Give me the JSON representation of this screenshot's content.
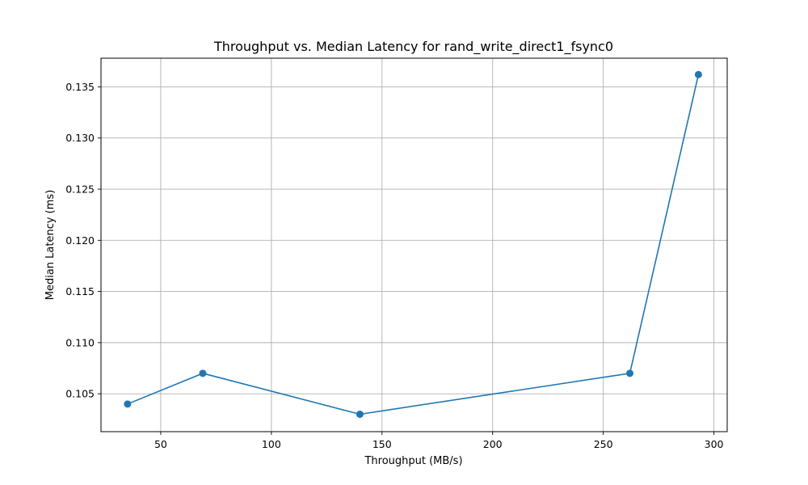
{
  "chart_data": {
    "type": "line",
    "title": "Throughput vs. Median Latency for rand_write_direct1_fsync0",
    "xlabel": "Throughput (MB/s)",
    "ylabel": "Median Latency (ms)",
    "xlim": [
      23,
      306
    ],
    "ylim": [
      0.1013,
      0.1378
    ],
    "xticks": [
      50,
      100,
      150,
      200,
      250,
      300
    ],
    "yticks": [
      0.105,
      0.11,
      0.115,
      0.12,
      0.125,
      0.13,
      0.135
    ],
    "xtick_labels": [
      "50",
      "100",
      "150",
      "200",
      "250",
      "300"
    ],
    "ytick_labels": [
      "0.105",
      "0.110",
      "0.115",
      "0.120",
      "0.125",
      "0.130",
      "0.135"
    ],
    "grid": true,
    "color": "#1f77b4",
    "marker": "circle",
    "series": [
      {
        "x": [
          35,
          69,
          140,
          262,
          293
        ],
        "y": [
          0.104,
          0.107,
          0.103,
          0.107,
          0.1362
        ]
      }
    ]
  }
}
